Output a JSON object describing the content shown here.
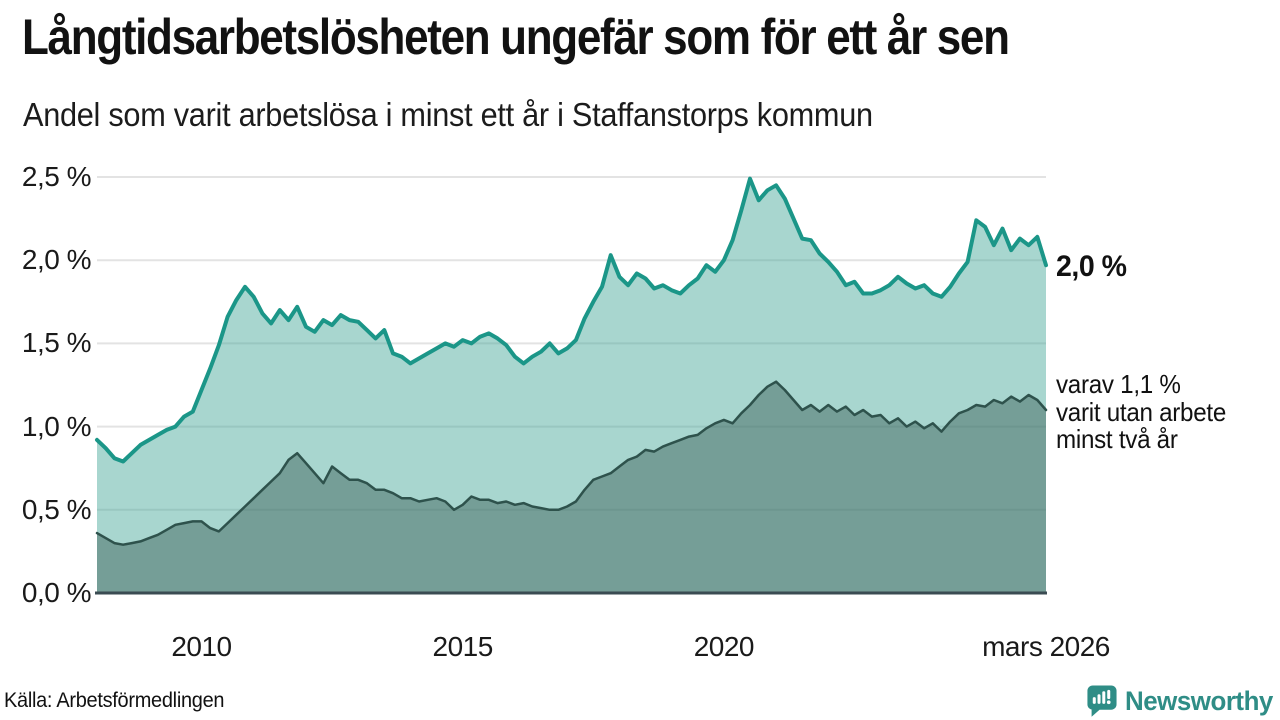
{
  "chart_data": {
    "type": "area",
    "title": "Långtidsarbetslösheten ungefär som för ett år sen",
    "subtitle": "Andel som varit arbetslösa i minst ett år i Staffanstorps kommun",
    "unit": "%",
    "start_year": 2008,
    "step_months": 2,
    "ylim": [
      0,
      2.55
    ],
    "grid": true,
    "legend_position": "none",
    "y_ticks": [
      {
        "v": 0.0,
        "label": "0,0 %"
      },
      {
        "v": 0.5,
        "label": "0,5 %"
      },
      {
        "v": 1.0,
        "label": "1,0 %"
      },
      {
        "v": 1.5,
        "label": "1,5 %"
      },
      {
        "v": 2.0,
        "label": "2,0 %"
      },
      {
        "v": 2.5,
        "label": "2,5 %"
      }
    ],
    "x_ticks": [
      {
        "t": 2010,
        "label": "2010"
      },
      {
        "t": 2015,
        "label": "2015"
      },
      {
        "t": 2020,
        "label": "2020"
      },
      {
        "t": 2026.1667,
        "label": "mars 2026"
      }
    ],
    "colors": {
      "grid": "#e3e3e3",
      "axis": "#3a4b52",
      "accent": "#1b9688",
      "brand": "#2f8d86"
    },
    "series": [
      {
        "name": "Andel arbetslösa minst ett år",
        "color": "#1b9688",
        "fill": "rgba(70,168,152,0.47)",
        "line_width": 4,
        "end_value": "2,0 %",
        "values": [
          0.92,
          0.87,
          0.81,
          0.79,
          0.84,
          0.89,
          0.92,
          0.95,
          0.98,
          1.0,
          1.06,
          1.09,
          1.22,
          1.35,
          1.49,
          1.66,
          1.76,
          1.84,
          1.78,
          1.68,
          1.62,
          1.7,
          1.64,
          1.72,
          1.6,
          1.57,
          1.64,
          1.61,
          1.67,
          1.64,
          1.63,
          1.58,
          1.53,
          1.58,
          1.44,
          1.42,
          1.38,
          1.41,
          1.44,
          1.47,
          1.5,
          1.48,
          1.52,
          1.5,
          1.54,
          1.56,
          1.53,
          1.49,
          1.42,
          1.38,
          1.42,
          1.45,
          1.5,
          1.44,
          1.47,
          1.52,
          1.65,
          1.75,
          1.84,
          2.03,
          1.9,
          1.85,
          1.92,
          1.89,
          1.83,
          1.85,
          1.82,
          1.8,
          1.85,
          1.89,
          1.97,
          1.93,
          2.0,
          2.12,
          2.3,
          2.49,
          2.36,
          2.42,
          2.45,
          2.37,
          2.25,
          2.13,
          2.12,
          2.04,
          1.99,
          1.93,
          1.85,
          1.87,
          1.8,
          1.8,
          1.82,
          1.85,
          1.9,
          1.86,
          1.83,
          1.85,
          1.8,
          1.78,
          1.84,
          1.92,
          1.99,
          2.24,
          2.2,
          2.09,
          2.19,
          2.06,
          2.13,
          2.09,
          2.14,
          1.97
        ]
      },
      {
        "name": "varav utan arbete minst två år",
        "color": "#2e524c",
        "fill": "rgba(56,92,84,0.46)",
        "line_width": 2.5,
        "end_value": "1,1 %",
        "values": [
          0.36,
          0.33,
          0.3,
          0.29,
          0.3,
          0.31,
          0.33,
          0.35,
          0.38,
          0.41,
          0.42,
          0.43,
          0.43,
          0.39,
          0.37,
          0.42,
          0.47,
          0.52,
          0.57,
          0.62,
          0.67,
          0.72,
          0.8,
          0.84,
          0.78,
          0.72,
          0.66,
          0.76,
          0.72,
          0.68,
          0.68,
          0.66,
          0.62,
          0.62,
          0.6,
          0.57,
          0.57,
          0.55,
          0.56,
          0.57,
          0.55,
          0.5,
          0.53,
          0.58,
          0.56,
          0.56,
          0.54,
          0.55,
          0.53,
          0.54,
          0.52,
          0.51,
          0.5,
          0.5,
          0.52,
          0.55,
          0.62,
          0.68,
          0.7,
          0.72,
          0.76,
          0.8,
          0.82,
          0.86,
          0.85,
          0.88,
          0.9,
          0.92,
          0.94,
          0.95,
          0.99,
          1.02,
          1.04,
          1.02,
          1.08,
          1.13,
          1.19,
          1.24,
          1.27,
          1.22,
          1.16,
          1.1,
          1.13,
          1.09,
          1.13,
          1.09,
          1.12,
          1.07,
          1.1,
          1.06,
          1.07,
          1.02,
          1.05,
          1.0,
          1.03,
          0.99,
          1.02,
          0.97,
          1.03,
          1.08,
          1.1,
          1.13,
          1.12,
          1.16,
          1.14,
          1.18,
          1.15,
          1.19,
          1.16,
          1.1
        ]
      }
    ],
    "annotations": {
      "end_value_label": "2,0 %",
      "sub_label_lines": [
        "varav 1,1 %",
        "varit utan arbete",
        "minst två år"
      ]
    }
  },
  "footer": {
    "source": "Källa: Arbetsförmedlingen",
    "brand": "Newsworthy"
  }
}
